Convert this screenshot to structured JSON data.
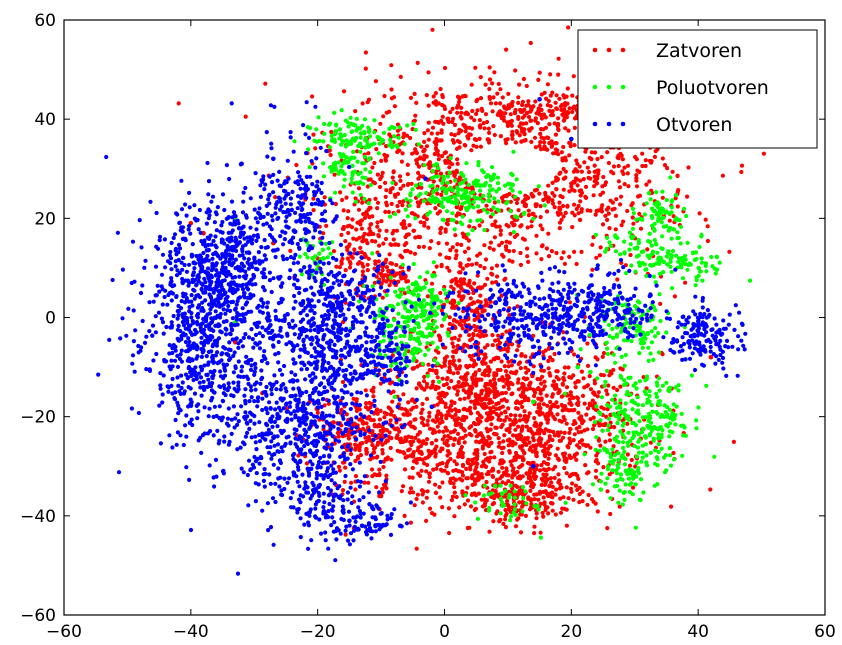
{
  "chart_data": {
    "type": "scatter",
    "title": "",
    "xlabel": "",
    "ylabel": "",
    "xlim": [
      -60,
      60
    ],
    "ylim": [
      -60,
      60
    ],
    "xticks": [
      -60,
      -40,
      -20,
      0,
      20,
      40,
      60
    ],
    "yticks": [
      -60,
      -40,
      -20,
      0,
      20,
      40,
      60
    ],
    "xtick_labels": [
      "−60",
      "−40",
      "−20",
      "0",
      "20",
      "40",
      "60"
    ],
    "ytick_labels": [
      "−60",
      "−40",
      "−20",
      "0",
      "20",
      "40",
      "60"
    ],
    "grid": false,
    "legend_position": "top-right",
    "series": [
      {
        "name": "Zatvoren",
        "color": "#ff0000",
        "clusters": [
          {
            "cx": 10,
            "cy": 30,
            "sx": 13,
            "sy": 9,
            "n": 1100,
            "ring": true,
            "rx": 8,
            "ry": 5
          },
          {
            "cx": 18,
            "cy": 42,
            "sx": 7,
            "sy": 2,
            "n": 150
          },
          {
            "cx": -12,
            "cy": 15,
            "sx": 4,
            "sy": 6,
            "n": 160
          },
          {
            "cx": -9,
            "cy": 8,
            "sx": 2,
            "sy": 2,
            "n": 60
          },
          {
            "cx": 4,
            "cy": 2,
            "sx": 3,
            "sy": 8,
            "n": 260
          },
          {
            "cx": 5,
            "cy": -12,
            "sx": 6,
            "sy": 4,
            "n": 250
          },
          {
            "cx": 2,
            "cy": -25,
            "sx": 10,
            "sy": 7,
            "n": 800
          },
          {
            "cx": 18,
            "cy": -20,
            "sx": 7,
            "sy": 8,
            "n": 500
          },
          {
            "cx": 12,
            "cy": -36,
            "sx": 5,
            "sy": 3,
            "n": 200
          },
          {
            "cx": -12,
            "cy": -23,
            "sx": 4,
            "sy": 3,
            "n": 150
          }
        ],
        "strays": [
          [
            -38,
            17
          ],
          [
            -33,
            -5
          ],
          [
            -13,
            24
          ],
          [
            -27,
            15
          ],
          [
            -40,
            19
          ],
          [
            42,
            -8
          ],
          [
            -5,
            -28
          ],
          [
            -10,
            -36
          ]
        ]
      },
      {
        "name": "Poluotvoren",
        "color": "#00ff00",
        "clusters": [
          {
            "cx": -14,
            "cy": 37,
            "sx": 4,
            "sy": 2,
            "n": 110
          },
          {
            "cx": -15,
            "cy": 30,
            "sx": 2,
            "sy": 3,
            "n": 70
          },
          {
            "cx": 3,
            "cy": 25,
            "sx": 5,
            "sy": 3,
            "n": 210
          },
          {
            "cx": -6,
            "cy": -2,
            "sx": 3,
            "sy": 5,
            "n": 190
          },
          {
            "cx": -3,
            "cy": 4,
            "sx": 2,
            "sy": 3,
            "n": 70
          },
          {
            "cx": 34,
            "cy": 21,
            "sx": 2,
            "sy": 2,
            "n": 60
          },
          {
            "cx": 37,
            "cy": 11,
            "sx": 4,
            "sy": 2,
            "n": 90
          },
          {
            "cx": 31,
            "cy": 15,
            "sx": 3,
            "sy": 2,
            "n": 60
          },
          {
            "cx": 29,
            "cy": -2,
            "sx": 3,
            "sy": 3,
            "n": 110
          },
          {
            "cx": 31,
            "cy": -21,
            "sx": 4,
            "sy": 6,
            "n": 260
          },
          {
            "cx": 28,
            "cy": -32,
            "sx": 2,
            "sy": 3,
            "n": 60
          },
          {
            "cx": 11,
            "cy": -37,
            "sx": 3,
            "sy": 2,
            "n": 40
          },
          {
            "cx": -20,
            "cy": 13,
            "sx": 1.5,
            "sy": 2,
            "n": 35
          }
        ],
        "strays": [
          [
            -33,
            20
          ],
          [
            -33,
            -1
          ],
          [
            -35,
            -12
          ],
          [
            -18,
            24
          ],
          [
            21,
            -10
          ],
          [
            14,
            -17
          ],
          [
            8,
            -34
          ],
          [
            23,
            -11
          ]
        ]
      },
      {
        "name": "Otvoren",
        "color": "#0000ff",
        "clusters": [
          {
            "cx": -38,
            "cy": 0,
            "sx": 5,
            "sy": 12,
            "n": 850
          },
          {
            "cx": -34,
            "cy": 12,
            "sx": 3,
            "sy": 6,
            "n": 200
          },
          {
            "cx": -24,
            "cy": 22,
            "sx": 3,
            "sy": 7,
            "n": 220
          },
          {
            "cx": -18,
            "cy": 0,
            "sx": 5,
            "sy": 6,
            "n": 420
          },
          {
            "cx": -23,
            "cy": -20,
            "sx": 6,
            "sy": 9,
            "n": 650
          },
          {
            "cx": -19,
            "cy": -38,
            "sx": 3,
            "sy": 4,
            "n": 110
          },
          {
            "cx": -12,
            "cy": -40,
            "sx": 3,
            "sy": 2,
            "n": 60
          },
          {
            "cx": -10,
            "cy": -8,
            "sx": 3,
            "sy": 4,
            "n": 120
          },
          {
            "cx": 14,
            "cy": 0,
            "sx": 6,
            "sy": 4,
            "n": 320
          },
          {
            "cx": 25,
            "cy": 2,
            "sx": 4,
            "sy": 4,
            "n": 170
          },
          {
            "cx": 41,
            "cy": -4,
            "sx": 3,
            "sy": 3,
            "n": 160
          }
        ],
        "strays": [
          [
            -13,
            -42
          ],
          [
            -10,
            -42
          ],
          [
            -7,
            -42
          ],
          [
            -15,
            -41
          ],
          [
            20,
            36
          ],
          [
            15,
            44
          ],
          [
            -3,
            28
          ],
          [
            5,
            -6
          ],
          [
            14,
            -30
          ],
          [
            -2,
            -18
          ],
          [
            -32,
            31
          ],
          [
            -27,
            32
          ]
        ]
      }
    ]
  }
}
